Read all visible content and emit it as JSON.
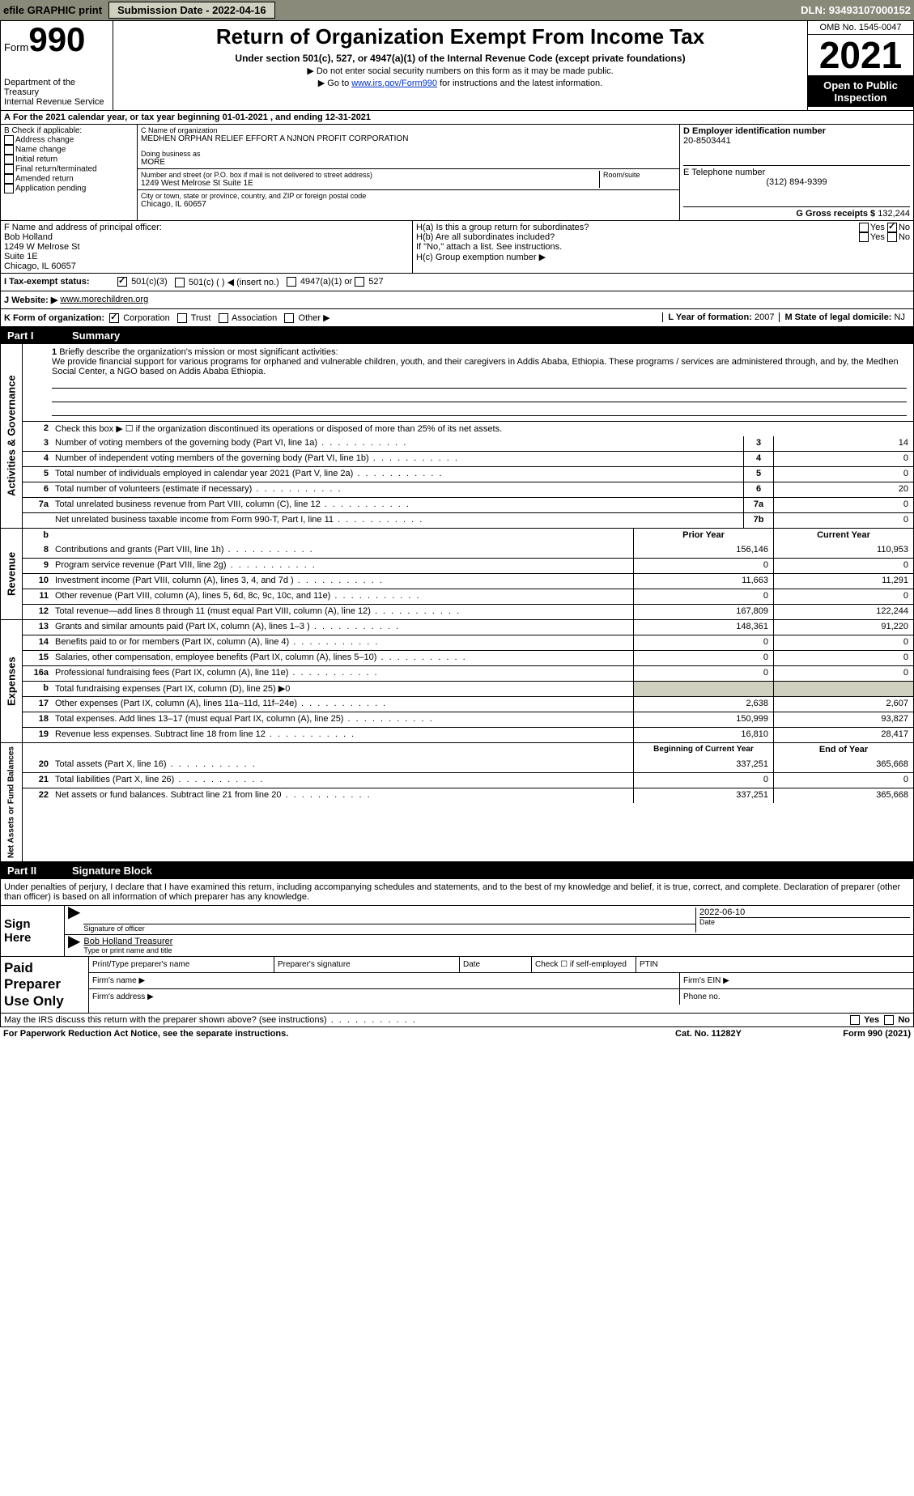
{
  "topbar": {
    "efile_label": "efile GRAPHIC print",
    "submission_label": "Submission Date - 2022-04-16",
    "dln": "DLN: 93493107000152"
  },
  "header": {
    "form_prefix": "Form",
    "form_number": "990",
    "dept": "Department of the Treasury",
    "irs": "Internal Revenue Service",
    "title": "Return of Organization Exempt From Income Tax",
    "subtitle": "Under section 501(c), 527, or 4947(a)(1) of the Internal Revenue Code (except private foundations)",
    "note1": "▶ Do not enter social security numbers on this form as it may be made public.",
    "note2_pre": "▶ Go to ",
    "note2_link": "www.irs.gov/Form990",
    "note2_post": " for instructions and the latest information.",
    "omb": "OMB No. 1545-0047",
    "year": "2021",
    "open_public": "Open to Public Inspection"
  },
  "A": {
    "text": "For the 2021 calendar year, or tax year beginning 01-01-2021    , and ending 12-31-2021"
  },
  "B": {
    "label": "B Check if applicable:",
    "items": [
      "Address change",
      "Name change",
      "Initial return",
      "Final return/terminated",
      "Amended return",
      "Application pending"
    ]
  },
  "C": {
    "name_label": "C Name of organization",
    "name": "MEDHEN ORPHAN RELIEF EFFORT A NJNON PROFIT CORPORATION",
    "dba_label": "Doing business as",
    "dba": "MORE",
    "street_label": "Number and street (or P.O. box if mail is not delivered to street address)",
    "room_label": "Room/suite",
    "street": "1249 West Melrose St Suite 1E",
    "city_label": "City or town, state or province, country, and ZIP or foreign postal code",
    "city": "Chicago, IL  60657"
  },
  "D": {
    "label": "D Employer identification number",
    "ein": "20-8503441",
    "E_label": "E Telephone number",
    "phone": "(312) 894-9399",
    "G_label": "G Gross receipts $",
    "gross": "132,244"
  },
  "F": {
    "label": "F  Name and address of principal officer:",
    "name": "Bob Holland",
    "addr1": "1249 W Melrose St",
    "addr2": "Suite 1E",
    "addr3": "Chicago, IL  60657"
  },
  "H": {
    "a_label": "H(a)  Is this a group return for subordinates?",
    "b_label": "H(b)  Are all subordinates included?",
    "b_note": "If \"No,\" attach a list. See instructions.",
    "c_label": "H(c)  Group exemption number ▶",
    "yes": "Yes",
    "no": "No"
  },
  "I": {
    "label": "I    Tax-exempt status:",
    "opt1": "501(c)(3)",
    "opt2": "501(c) (  ) ◀ (insert no.)",
    "opt3": "4947(a)(1) or",
    "opt4": "527"
  },
  "J": {
    "label": "J   Website: ▶",
    "url": "www.morechildren.org"
  },
  "K": {
    "label": "K Form of organization:",
    "opts": [
      "Corporation",
      "Trust",
      "Association",
      "Other ▶"
    ],
    "L_label": "L Year of formation:",
    "L_val": "2007",
    "M_label": "M State of legal domicile:",
    "M_val": "NJ"
  },
  "part1": {
    "header": "Part I",
    "title": "Summary"
  },
  "summary": {
    "sec1_label": "Activities & Governance",
    "line1_label": "Briefly describe the organization's mission or most significant activities:",
    "mission": "We provide financial support for various programs for orphaned and vulnerable children, youth, and their caregivers in Addis Ababa, Ethiopia. These programs / services are administered through, and by, the Medhen Social Center, a NGO based on Addis Ababa Ethiopia.",
    "line2": "Check this box ▶ ☐  if the organization discontinued its operations or disposed of more than 25% of its net assets.",
    "rows_gov": [
      {
        "n": "3",
        "d": "Number of voting members of the governing body (Part VI, line 1a)",
        "b": "3",
        "v": "14"
      },
      {
        "n": "4",
        "d": "Number of independent voting members of the governing body (Part VI, line 1b)",
        "b": "4",
        "v": "0"
      },
      {
        "n": "5",
        "d": "Total number of individuals employed in calendar year 2021 (Part V, line 2a)",
        "b": "5",
        "v": "0"
      },
      {
        "n": "6",
        "d": "Total number of volunteers (estimate if necessary)",
        "b": "6",
        "v": "20"
      },
      {
        "n": "7a",
        "d": "Total unrelated business revenue from Part VIII, column (C), line 12",
        "b": "7a",
        "v": "0"
      },
      {
        "n": "",
        "d": "Net unrelated business taxable income from Form 990-T, Part I, line 11",
        "b": "7b",
        "v": "0"
      }
    ],
    "header_prior": "Prior Year",
    "header_current": "Current Year",
    "sec2_label": "Revenue",
    "rows_rev": [
      {
        "n": "8",
        "d": "Contributions and grants (Part VIII, line 1h)",
        "p": "156,146",
        "c": "110,953"
      },
      {
        "n": "9",
        "d": "Program service revenue (Part VIII, line 2g)",
        "p": "0",
        "c": "0"
      },
      {
        "n": "10",
        "d": "Investment income (Part VIII, column (A), lines 3, 4, and 7d )",
        "p": "11,663",
        "c": "11,291"
      },
      {
        "n": "11",
        "d": "Other revenue (Part VIII, column (A), lines 5, 6d, 8c, 9c, 10c, and 11e)",
        "p": "0",
        "c": "0"
      },
      {
        "n": "12",
        "d": "Total revenue—add lines 8 through 11 (must equal Part VIII, column (A), line 12)",
        "p": "167,809",
        "c": "122,244"
      }
    ],
    "sec3_label": "Expenses",
    "rows_exp": [
      {
        "n": "13",
        "d": "Grants and similar amounts paid (Part IX, column (A), lines 1–3 )",
        "p": "148,361",
        "c": "91,220"
      },
      {
        "n": "14",
        "d": "Benefits paid to or for members (Part IX, column (A), line 4)",
        "p": "0",
        "c": "0"
      },
      {
        "n": "15",
        "d": "Salaries, other compensation, employee benefits (Part IX, column (A), lines 5–10)",
        "p": "0",
        "c": "0"
      },
      {
        "n": "16a",
        "d": "Professional fundraising fees (Part IX, column (A), line 11e)",
        "p": "0",
        "c": "0"
      },
      {
        "n": "b",
        "d": "Total fundraising expenses (Part IX, column (D), line 25) ▶0",
        "p": "",
        "c": "",
        "shaded": true
      },
      {
        "n": "17",
        "d": "Other expenses (Part IX, column (A), lines 11a–11d, 11f–24e)",
        "p": "2,638",
        "c": "2,607"
      },
      {
        "n": "18",
        "d": "Total expenses. Add lines 13–17 (must equal Part IX, column (A), line 25)",
        "p": "150,999",
        "c": "93,827"
      },
      {
        "n": "19",
        "d": "Revenue less expenses. Subtract line 18 from line 12",
        "p": "16,810",
        "c": "28,417"
      }
    ],
    "sec4_label": "Net Assets or Fund Balances",
    "header_begin": "Beginning of Current Year",
    "header_end": "End of Year",
    "rows_net": [
      {
        "n": "20",
        "d": "Total assets (Part X, line 16)",
        "p": "337,251",
        "c": "365,668"
      },
      {
        "n": "21",
        "d": "Total liabilities (Part X, line 26)",
        "p": "0",
        "c": "0"
      },
      {
        "n": "22",
        "d": "Net assets or fund balances. Subtract line 21 from line 20",
        "p": "337,251",
        "c": "365,668"
      }
    ]
  },
  "part2": {
    "header": "Part II",
    "title": "Signature Block",
    "declaration": "Under penalties of perjury, I declare that I have examined this return, including accompanying schedules and statements, and to the best of my knowledge and belief, it is true, correct, and complete. Declaration of preparer (other than officer) is based on all information of which preparer has any knowledge."
  },
  "sign": {
    "left1": "Sign",
    "left2": "Here",
    "sig_label": "Signature of officer",
    "date_label": "Date",
    "date": "2022-06-10",
    "name": "Bob Holland Treasurer",
    "name_label": "Type or print name and title"
  },
  "paid": {
    "left": "Paid Preparer Use Only",
    "h1": "Print/Type preparer's name",
    "h2": "Preparer's signature",
    "h3": "Date",
    "h4": "Check ☐ if self-employed",
    "h5": "PTIN",
    "firm_name": "Firm's name   ▶",
    "firm_ein": "Firm's EIN ▶",
    "firm_addr": "Firm's address ▶",
    "phone": "Phone no."
  },
  "footer": {
    "discuss": "May the IRS discuss this return with the preparer shown above? (see instructions)",
    "yes": "Yes",
    "no": "No",
    "paperwork": "For Paperwork Reduction Act Notice, see the separate instructions.",
    "cat": "Cat. No. 11282Y",
    "form": "Form 990 (2021)"
  }
}
